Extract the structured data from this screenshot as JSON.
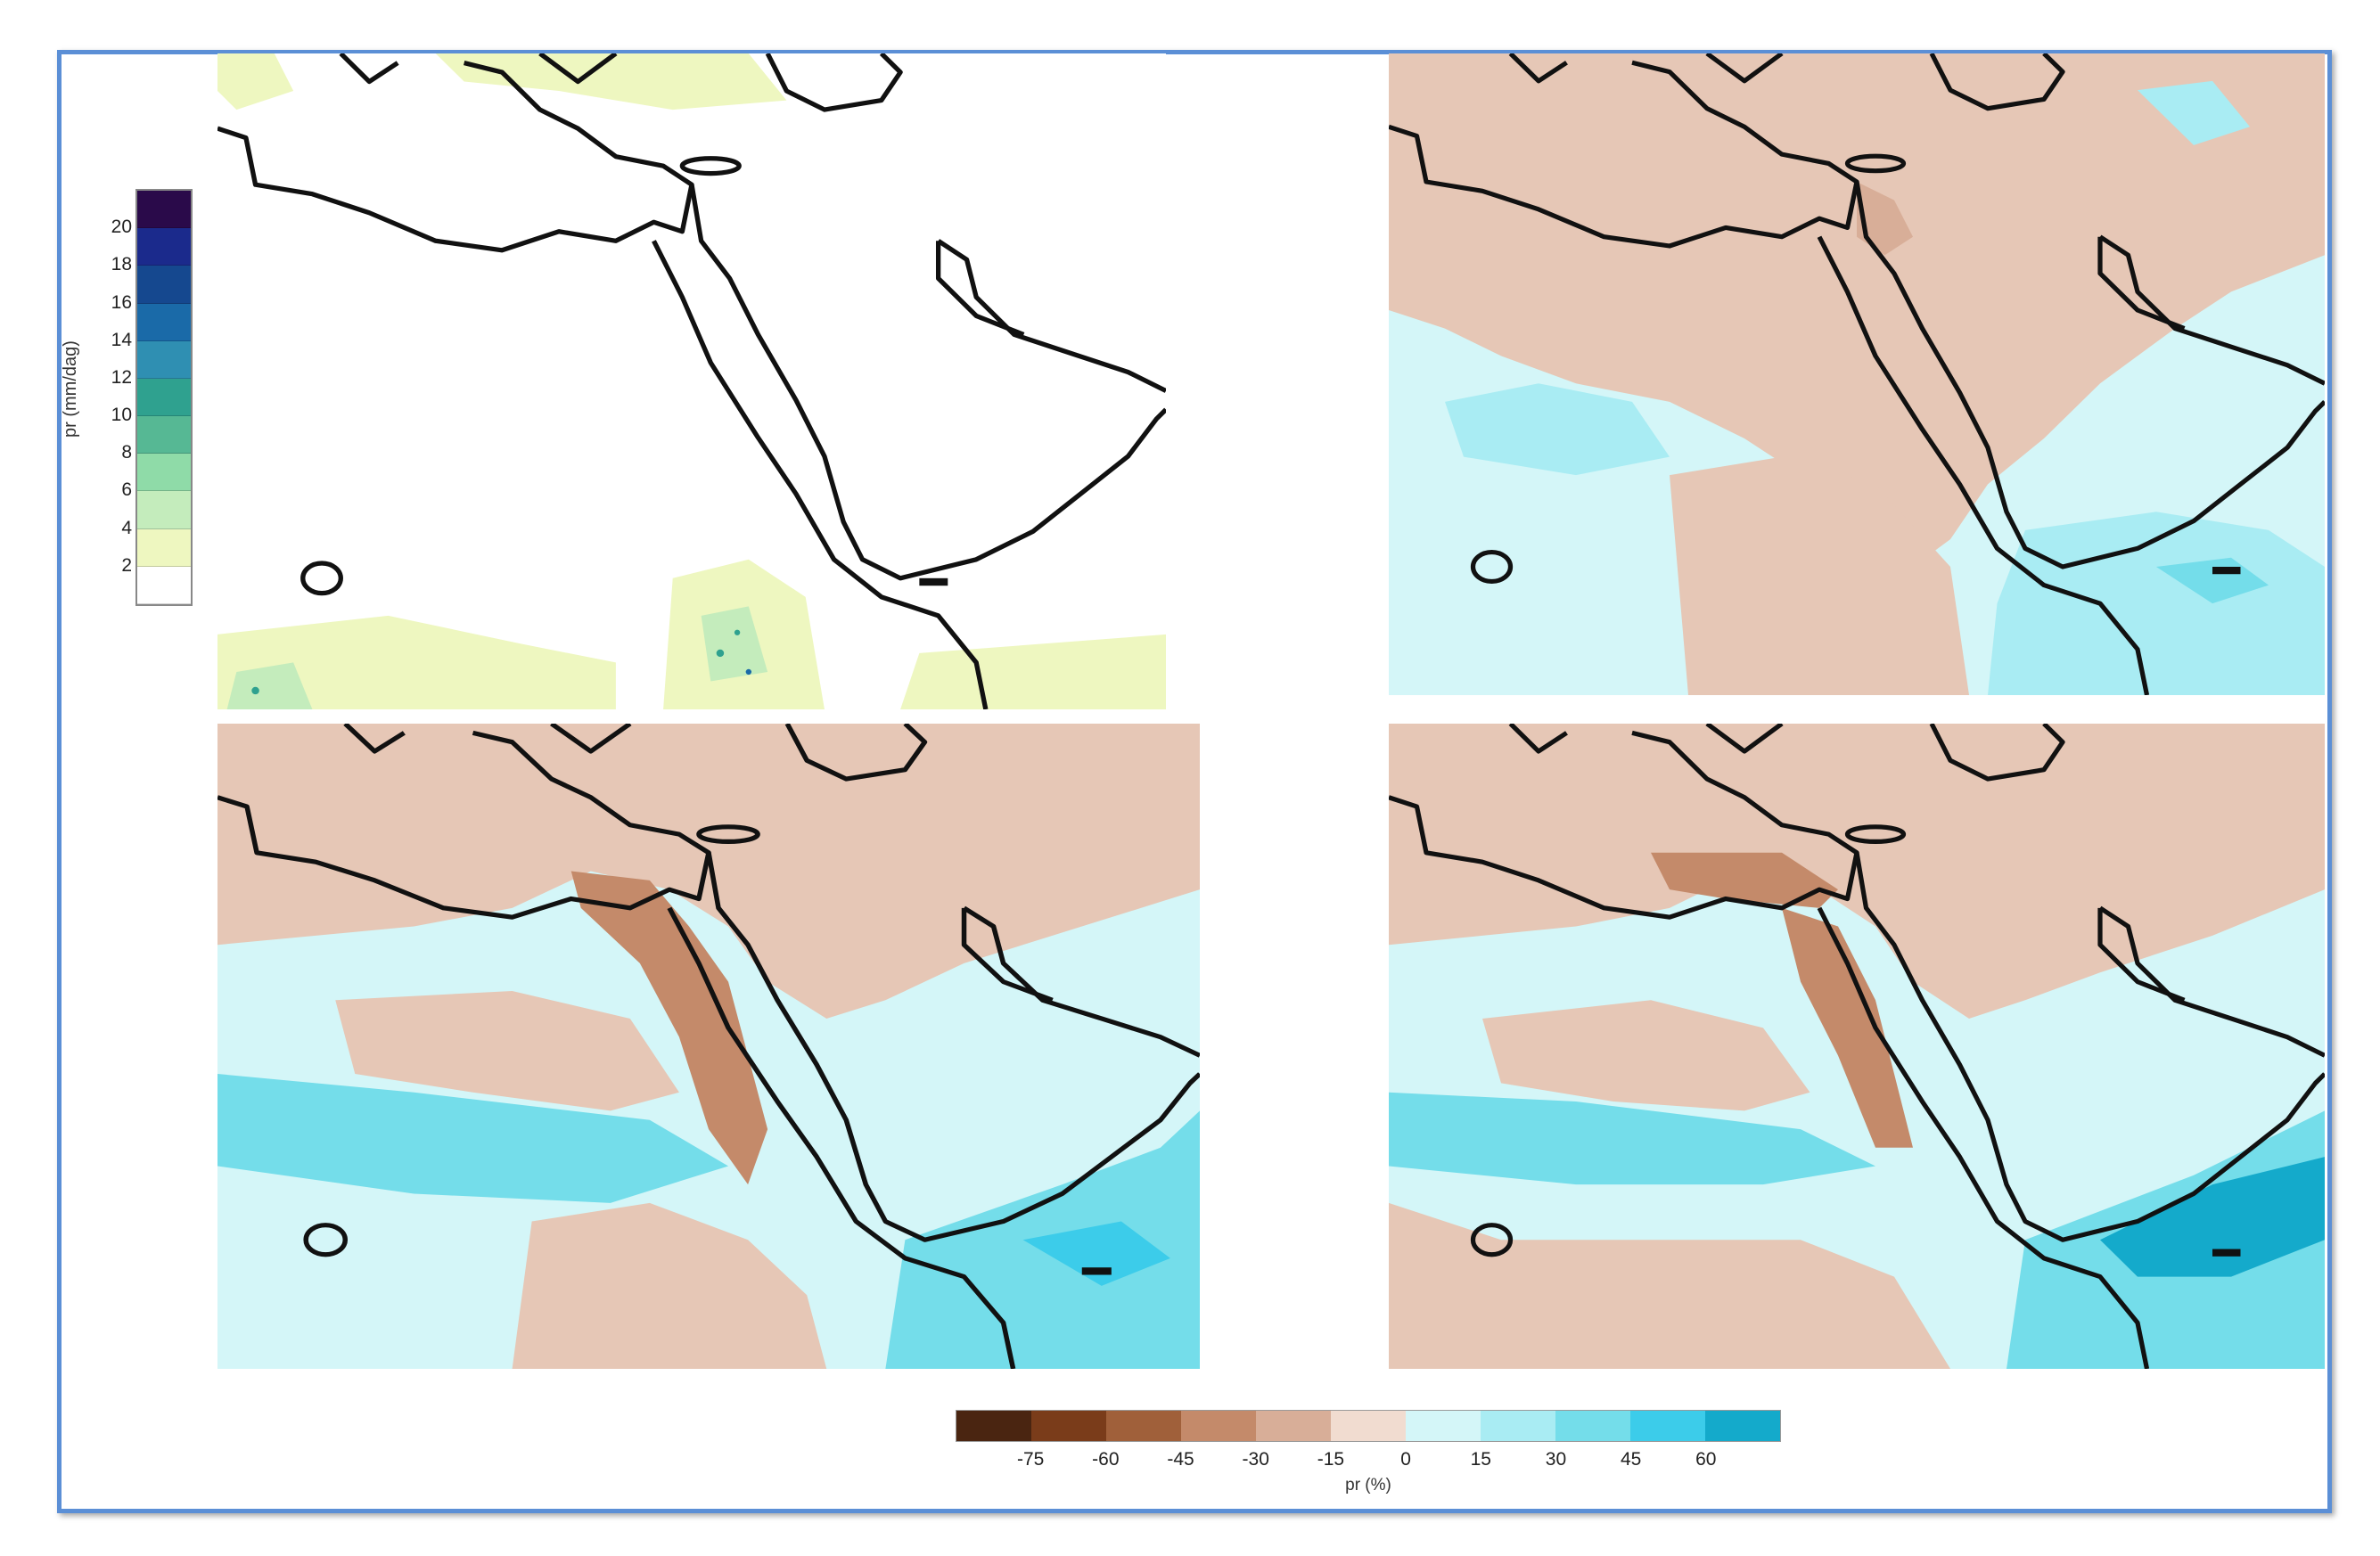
{
  "pr_legend": {
    "label": "pr (mm/dag)",
    "ticks": [
      "20",
      "18",
      "16",
      "14",
      "12",
      "10",
      "8",
      "6",
      "4",
      "2"
    ],
    "colors": [
      "#2a0a4a",
      "#1b2a8c",
      "#15488f",
      "#1a6aa8",
      "#2f8fb2",
      "#2fa18f",
      "#56b894",
      "#8fdba8",
      "#c4ecbc",
      "#eef7c0",
      "#ffffff"
    ]
  },
  "change_legend": {
    "title": "pr (%)",
    "ticks": [
      "-75",
      "-60",
      "-45",
      "-30",
      "-15",
      "0",
      "15",
      "30",
      "45",
      "60"
    ],
    "colors": [
      "#4a2511",
      "#7a3c1a",
      "#a0603a",
      "#c48a6a",
      "#d8ae98",
      "#f1dcd0",
      "#d4f6f8",
      "#a9ecf3",
      "#74ddea",
      "#3cccea",
      "#14aacb"
    ]
  },
  "colors": {
    "frame_border": "#5b8fd6",
    "coastline": "#111111",
    "land_dry": "#e6c7b6",
    "land_wet": "#d4f6f8",
    "sea_wet": "#8fe4ef"
  }
}
